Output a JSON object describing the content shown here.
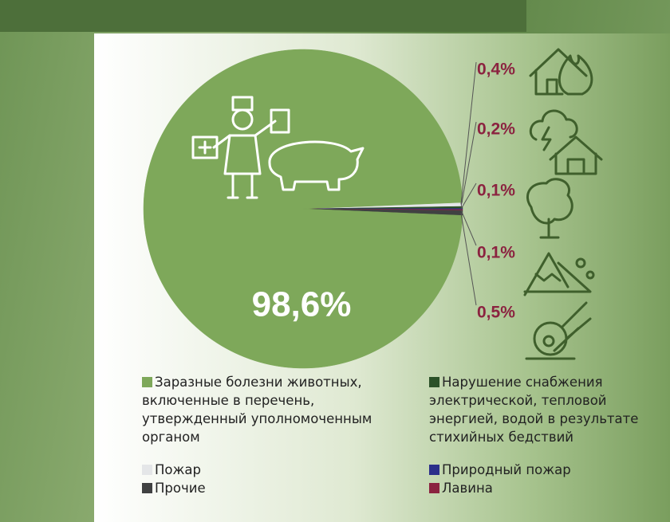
{
  "chart_data": {
    "type": "pie",
    "categories": [
      "Заразные болезни животных, включенные в перечень, утвержденный уполномоченным органом",
      "Пожар",
      "Нарушение снабжения электрической, тепловой энергией, водой в результате стихийных бедствий",
      "Природный пожар",
      "Лавина",
      "Прочие"
    ],
    "values": [
      98.6,
      0.4,
      0.2,
      0.1,
      0.1,
      0.5
    ],
    "value_labels": [
      "98,6%",
      "0,4%",
      "0,2%",
      "0,1%",
      "0,1%",
      "0,5%"
    ],
    "colors": [
      "#7ea85a",
      "#e4e6e8",
      "#2b5128",
      "#2b2f8a",
      "#8b2340",
      "#404142"
    ]
  }
}
